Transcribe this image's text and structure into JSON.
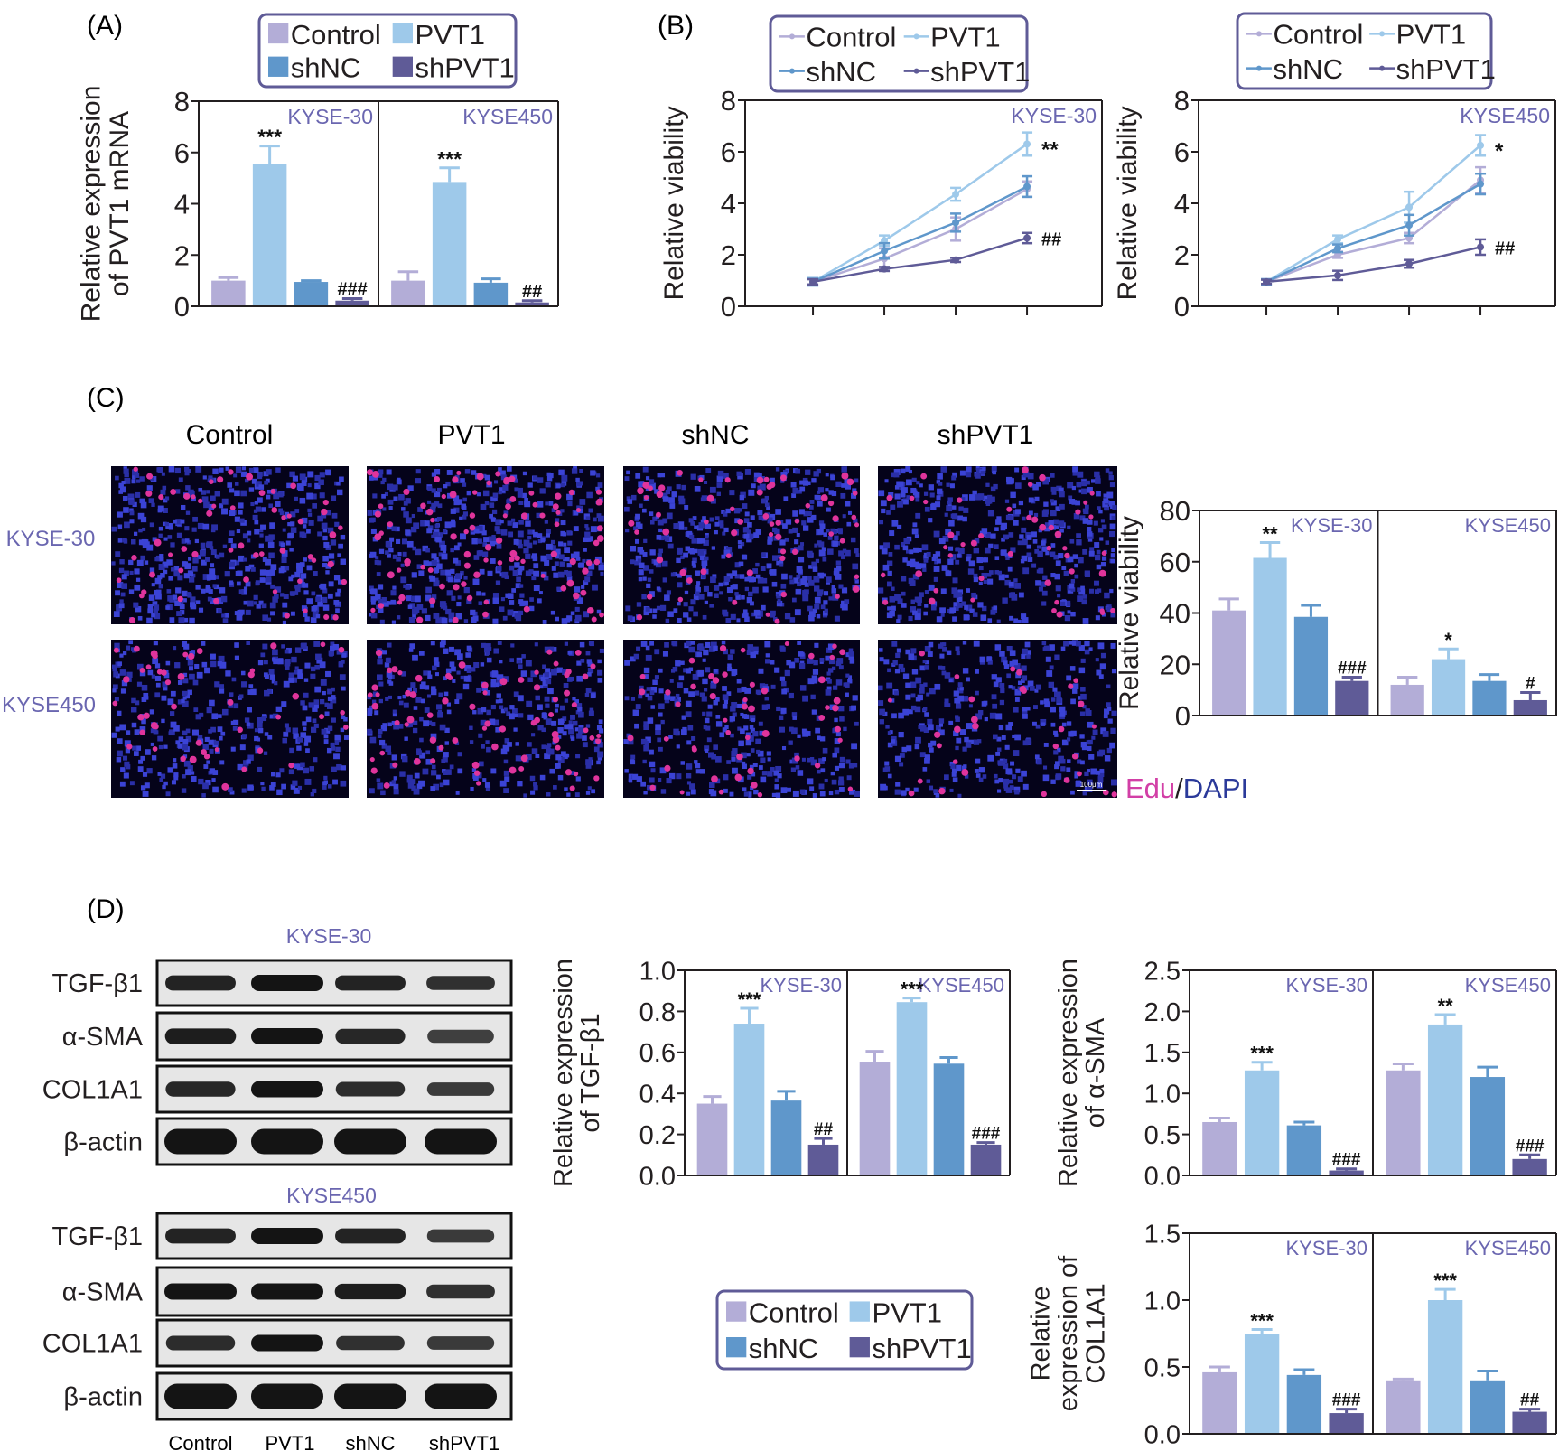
{
  "colors": {
    "Control": "#b3add7",
    "PVT1": "#9ec9ea",
    "shNC": "#5f97cb",
    "shPVT1": "#5f5b97",
    "cell_line_label": "#6a66b0",
    "legend_border": "#5f5b97",
    "edu": "#d23fa6",
    "dapi": "#2b3a9a"
  },
  "groups": [
    "Control",
    "PVT1",
    "shNC",
    "shPVT1"
  ],
  "panel_labels": {
    "A": "(A)",
    "B": "(B)",
    "C": "(C)",
    "D": "(D)"
  },
  "legend": {
    "items": [
      "Control",
      "PVT1",
      "shNC",
      "shPVT1"
    ]
  },
  "cell_lines": [
    "KYSE-30",
    "KYSE450"
  ],
  "panel_c": {
    "columns": [
      "Control",
      "PVT1",
      "shNC",
      "shPVT1"
    ],
    "rows": [
      "KYSE-30",
      "KYSE450"
    ],
    "stain_edu": "Edu",
    "stain_sep": "/",
    "stain_dapi": "DAPI",
    "scale_bar": "100μm"
  },
  "panel_d": {
    "blot_titles": [
      "KYSE-30",
      "KYSE450"
    ],
    "proteins": [
      "TGF-β1",
      "α-SMA",
      "COL1A1",
      "β-actin"
    ],
    "lanes": [
      "Control",
      "PVT1",
      "shNC",
      "shPVT1"
    ],
    "band_intensity": {
      "KYSE-30": [
        [
          0.85,
          1.0,
          0.85,
          0.7
        ],
        [
          0.9,
          1.0,
          0.8,
          0.55
        ],
        [
          0.8,
          1.0,
          0.75,
          0.6
        ],
        [
          1.0,
          1.0,
          1.0,
          1.0
        ]
      ],
      "KYSE450": [
        [
          0.85,
          1.0,
          0.85,
          0.6
        ],
        [
          1.0,
          1.0,
          0.9,
          0.7
        ],
        [
          0.75,
          1.0,
          0.7,
          0.6
        ],
        [
          1.0,
          1.0,
          1.0,
          1.0
        ]
      ]
    }
  },
  "chart_data": [
    {
      "id": "A",
      "type": "bar",
      "ylabel_lines": [
        "Relative expression",
        "of PVT1 mRNA"
      ],
      "ylim": [
        0,
        8
      ],
      "yticks": [
        "0",
        "2",
        "4",
        "6",
        "8"
      ],
      "facets": [
        {
          "title": "KYSE-30",
          "categories": [
            "Control",
            "PVT1",
            "shNC",
            "shPVT1"
          ],
          "values": [
            1.0,
            5.55,
            0.95,
            0.22
          ],
          "errors": [
            0.12,
            0.7,
            0.05,
            0.08
          ],
          "annotations": [
            "",
            "***",
            "",
            "###"
          ]
        },
        {
          "title": "KYSE450",
          "categories": [
            "Control",
            "PVT1",
            "shNC",
            "shPVT1"
          ],
          "values": [
            1.0,
            4.85,
            0.92,
            0.15
          ],
          "errors": [
            0.35,
            0.55,
            0.15,
            0.07
          ],
          "annotations": [
            "",
            "***",
            "",
            "##"
          ]
        }
      ]
    },
    {
      "id": "B1",
      "type": "line",
      "title": "KYSE-30",
      "ylabel": "Relative viability",
      "ylim": [
        0,
        8
      ],
      "yticks": [
        "0",
        "2",
        "4",
        "6",
        "8"
      ],
      "x": [
        1,
        2,
        3,
        4
      ],
      "series": [
        {
          "name": "Control",
          "values": [
            0.95,
            1.85,
            3.0,
            4.55
          ],
          "errors": [
            0.15,
            0.4,
            0.45,
            0.3
          ]
        },
        {
          "name": "PVT1",
          "values": [
            0.95,
            2.55,
            4.35,
            6.3
          ],
          "errors": [
            0.15,
            0.2,
            0.25,
            0.45
          ]
        },
        {
          "name": "shNC",
          "values": [
            0.95,
            2.15,
            3.25,
            4.65
          ],
          "errors": [
            0.12,
            0.3,
            0.35,
            0.4
          ]
        },
        {
          "name": "shPVT1",
          "values": [
            0.95,
            1.45,
            1.8,
            2.65
          ],
          "errors": [
            0.1,
            0.08,
            0.08,
            0.2
          ]
        }
      ],
      "annotations": [
        {
          "series": "PVT1",
          "text": "**"
        },
        {
          "series": "shPVT1",
          "text": "##"
        }
      ]
    },
    {
      "id": "B2",
      "type": "line",
      "title": "KYSE450",
      "ylabel": "Relative viability",
      "ylim": [
        0,
        8
      ],
      "yticks": [
        "0",
        "2",
        "4",
        "6",
        "8"
      ],
      "x": [
        1,
        2,
        3,
        4
      ],
      "series": [
        {
          "name": "Control",
          "values": [
            0.95,
            2.0,
            2.65,
            4.9
          ],
          "errors": [
            0.1,
            0.12,
            0.2,
            0.5
          ]
        },
        {
          "name": "PVT1",
          "values": [
            0.95,
            2.6,
            3.85,
            6.25
          ],
          "errors": [
            0.1,
            0.15,
            0.6,
            0.4
          ]
        },
        {
          "name": "shNC",
          "values": [
            0.95,
            2.25,
            3.15,
            4.75
          ],
          "errors": [
            0.1,
            0.15,
            0.4,
            0.4
          ]
        },
        {
          "name": "shPVT1",
          "values": [
            0.95,
            1.2,
            1.65,
            2.3
          ],
          "errors": [
            0.08,
            0.18,
            0.15,
            0.3
          ]
        }
      ],
      "annotations": [
        {
          "series": "PVT1",
          "text": "*"
        },
        {
          "series": "shPVT1",
          "text": "##"
        }
      ]
    },
    {
      "id": "C",
      "type": "bar",
      "ylabel_lines": [
        "Relative viability"
      ],
      "ylim": [
        0,
        80
      ],
      "yticks": [
        "0",
        "20",
        "40",
        "60",
        "80"
      ],
      "facets": [
        {
          "title": "KYSE-30",
          "categories": [
            "Control",
            "PVT1",
            "shNC",
            "shPVT1"
          ],
          "values": [
            41,
            61.5,
            38.5,
            13.5
          ],
          "errors": [
            4.5,
            6,
            4.5,
            1.5
          ],
          "annotations": [
            "",
            "**",
            "",
            "###"
          ]
        },
        {
          "title": "KYSE450",
          "categories": [
            "Control",
            "PVT1",
            "shNC",
            "shPVT1"
          ],
          "values": [
            12,
            22,
            13.5,
            6
          ],
          "errors": [
            3,
            4,
            2.5,
            3
          ],
          "annotations": [
            "",
            "*",
            "",
            "#"
          ]
        }
      ]
    },
    {
      "id": "D1",
      "type": "bar",
      "ylabel_lines": [
        "Relative expression",
        "of TGF-β1"
      ],
      "ylim": [
        0,
        1.0
      ],
      "yticks": [
        "0.0",
        "0.2",
        "0.4",
        "0.6",
        "0.8",
        "1.0"
      ],
      "facets": [
        {
          "title": "KYSE-30",
          "categories": [
            "Control",
            "PVT1",
            "shNC",
            "shPVT1"
          ],
          "values": [
            0.35,
            0.74,
            0.365,
            0.15
          ],
          "errors": [
            0.035,
            0.075,
            0.045,
            0.03
          ],
          "annotations": [
            "",
            "***",
            "",
            "##"
          ]
        },
        {
          "title": "KYSE450",
          "categories": [
            "Control",
            "PVT1",
            "shNC",
            "shPVT1"
          ],
          "values": [
            0.555,
            0.845,
            0.545,
            0.15
          ],
          "errors": [
            0.05,
            0.02,
            0.03,
            0.01
          ],
          "annotations": [
            "",
            "***",
            "",
            "###"
          ]
        }
      ]
    },
    {
      "id": "D2",
      "type": "bar",
      "ylabel_lines": [
        "Relative expression",
        "of α-SMA"
      ],
      "ylim": [
        0,
        2.5
      ],
      "yticks": [
        "0.0",
        "0.5",
        "1.0",
        "1.5",
        "2.0",
        "2.5"
      ],
      "facets": [
        {
          "title": "KYSE-30",
          "categories": [
            "Control",
            "PVT1",
            "shNC",
            "shPVT1"
          ],
          "values": [
            0.65,
            1.28,
            0.61,
            0.06
          ],
          "errors": [
            0.05,
            0.1,
            0.04,
            0.02
          ],
          "annotations": [
            "",
            "***",
            "",
            "###"
          ]
        },
        {
          "title": "KYSE450",
          "categories": [
            "Control",
            "PVT1",
            "shNC",
            "shPVT1"
          ],
          "values": [
            1.28,
            1.84,
            1.2,
            0.2
          ],
          "errors": [
            0.08,
            0.12,
            0.12,
            0.05
          ],
          "annotations": [
            "",
            "**",
            "",
            "###"
          ]
        }
      ]
    },
    {
      "id": "D3",
      "type": "bar",
      "ylabel_lines": [
        "Relative",
        "expression of",
        "COL1A1"
      ],
      "ylim": [
        0,
        1.5
      ],
      "yticks": [
        "0.0",
        "0.5",
        "1.0",
        "1.5"
      ],
      "facets": [
        {
          "title": "KYSE-30",
          "categories": [
            "Control",
            "PVT1",
            "shNC",
            "shPVT1"
          ],
          "values": [
            0.46,
            0.75,
            0.44,
            0.155
          ],
          "errors": [
            0.04,
            0.03,
            0.04,
            0.03
          ],
          "annotations": [
            "",
            "***",
            "",
            "###"
          ]
        },
        {
          "title": "KYSE450",
          "categories": [
            "Control",
            "PVT1",
            "shNC",
            "shPVT1"
          ],
          "values": [
            0.4,
            1.0,
            0.4,
            0.165
          ],
          "errors": [
            0.01,
            0.08,
            0.07,
            0.02
          ],
          "annotations": [
            "",
            "***",
            "",
            "##"
          ]
        }
      ]
    }
  ]
}
